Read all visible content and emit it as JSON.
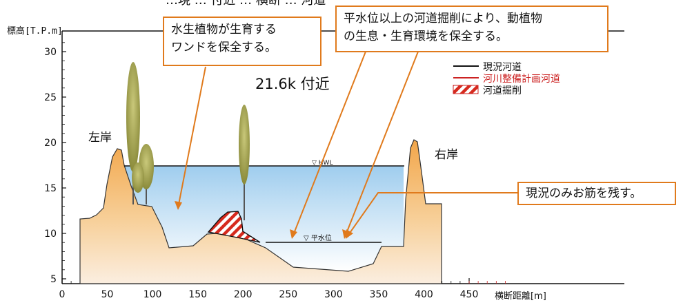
{
  "title_partial": "…現 … 付近 … 横断 … 河道",
  "yaxis": {
    "label": "標高[T.P.m]",
    "ticks": [
      "30",
      "25",
      "20",
      "15",
      "10",
      "5"
    ]
  },
  "xaxis": {
    "label": "横断距離[m]",
    "ticks": [
      "0",
      "50",
      "100",
      "150",
      "200",
      "250",
      "300",
      "350",
      "400",
      "450"
    ]
  },
  "location_label": "21.6k 付近",
  "bank_left": "左岸",
  "bank_right": "右岸",
  "water_level_high": "▽ HWL",
  "water_level_normal": "▽ 平水位",
  "legend": [
    {
      "label": "現況河道",
      "color": "#111111"
    },
    {
      "label": "河川整備計画河道",
      "color": "#cc2222"
    },
    {
      "label": "河道掘削",
      "color": "#cc2222"
    }
  ],
  "callouts": {
    "wando": [
      "水生植物が生育する",
      "ワンドを保全する。"
    ],
    "excavation": [
      "平水位以上の河道掘削により、動植物",
      "の生息・生育環境を保全する。"
    ],
    "channel": "現況のみお筋を残す。"
  },
  "colors": {
    "accent": "#e07a1c",
    "terrain_top": "#f2a64a",
    "terrain_bottom": "#fbeee0",
    "water_top": "#a9d3f0",
    "water_bottom": "#ffffff"
  }
}
